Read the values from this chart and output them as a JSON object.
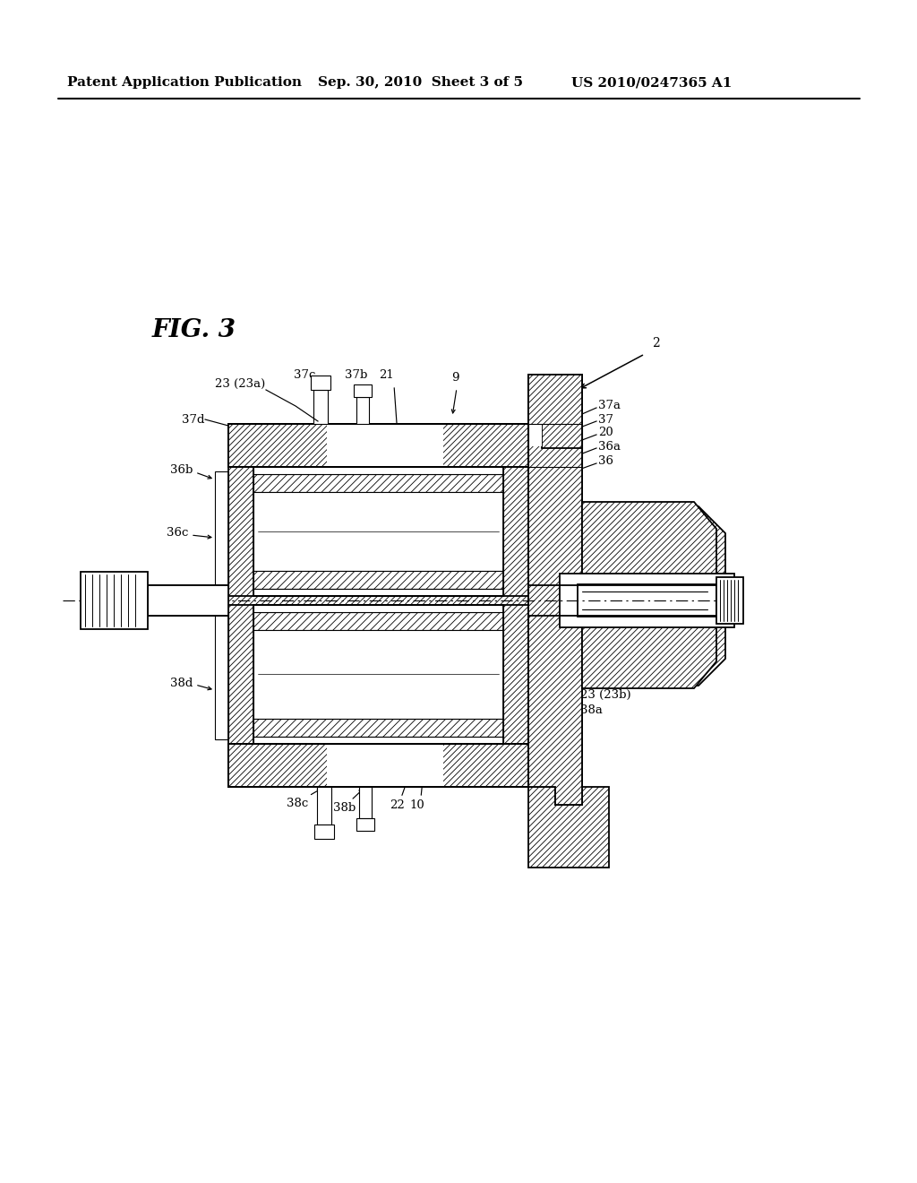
{
  "bg": "#ffffff",
  "lc": "#000000",
  "header_left": "Patent Application Publication",
  "header_mid": "Sep. 30, 2010  Sheet 3 of 5",
  "header_right": "US 2010/0247365 A1",
  "fig_label": "FIG. 3",
  "main_lw": 1.3,
  "thin_lw": 0.8,
  "hatch_lw": 0.5
}
